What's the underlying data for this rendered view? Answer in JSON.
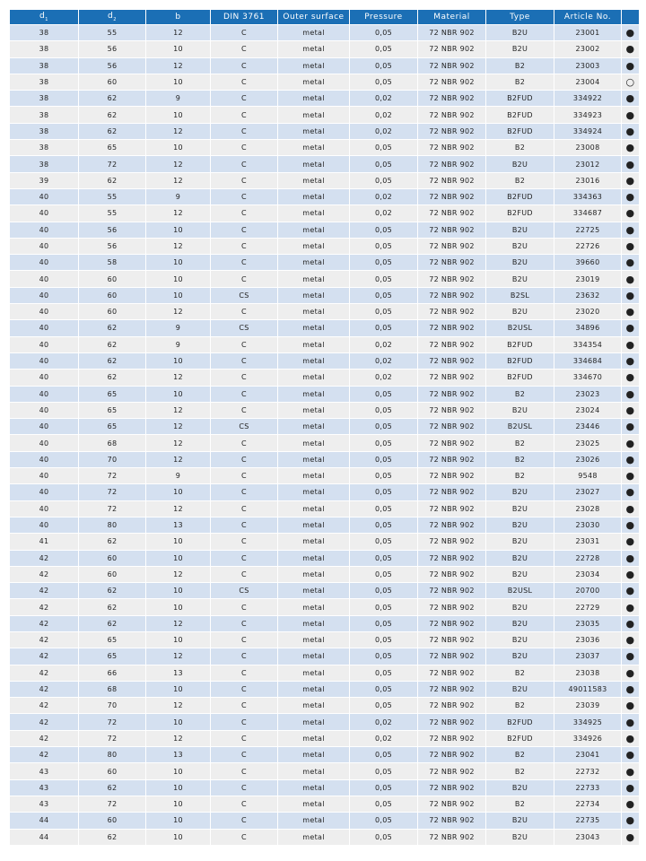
{
  "table": {
    "headers": [
      "d1",
      "d2",
      "b",
      "DIN 3761",
      "Outer surface",
      "Pressure",
      "Material",
      "Type",
      "Article No.",
      ""
    ],
    "header_sub": {
      "d1": "1",
      "d2": "2"
    },
    "availability_legend": {
      "filled": "●",
      "empty": "○"
    },
    "colors": {
      "header": "#1b6fb5",
      "row_odd": "#d4e0f0",
      "row_even": "#eeeeee"
    },
    "rows": [
      [
        "38",
        "55",
        "12",
        "C",
        "metal",
        "0,05",
        "72 NBR 902",
        "B2U",
        "23001",
        "●"
      ],
      [
        "38",
        "56",
        "10",
        "C",
        "metal",
        "0,05",
        "72 NBR 902",
        "B2U",
        "23002",
        "●"
      ],
      [
        "38",
        "56",
        "12",
        "C",
        "metal",
        "0,05",
        "72 NBR 902",
        "B2",
        "23003",
        "●"
      ],
      [
        "38",
        "60",
        "10",
        "C",
        "metal",
        "0,05",
        "72 NBR 902",
        "B2",
        "23004",
        "○"
      ],
      [
        "38",
        "62",
        "9",
        "C",
        "metal",
        "0,02",
        "72 NBR 902",
        "B2FUD",
        "334922",
        "●"
      ],
      [
        "38",
        "62",
        "10",
        "C",
        "metal",
        "0,02",
        "72 NBR 902",
        "B2FUD",
        "334923",
        "●"
      ],
      [
        "38",
        "62",
        "12",
        "C",
        "metal",
        "0,02",
        "72 NBR 902",
        "B2FUD",
        "334924",
        "●"
      ],
      [
        "38",
        "65",
        "10",
        "C",
        "metal",
        "0,05",
        "72 NBR 902",
        "B2",
        "23008",
        "●"
      ],
      [
        "38",
        "72",
        "12",
        "C",
        "metal",
        "0,05",
        "72 NBR 902",
        "B2U",
        "23012",
        "●"
      ],
      [
        "39",
        "62",
        "12",
        "C",
        "metal",
        "0,05",
        "72 NBR 902",
        "B2",
        "23016",
        "●"
      ],
      [
        "40",
        "55",
        "9",
        "C",
        "metal",
        "0,02",
        "72 NBR 902",
        "B2FUD",
        "334363",
        "●"
      ],
      [
        "40",
        "55",
        "12",
        "C",
        "metal",
        "0,02",
        "72 NBR 902",
        "B2FUD",
        "334687",
        "●"
      ],
      [
        "40",
        "56",
        "10",
        "C",
        "metal",
        "0,05",
        "72 NBR 902",
        "B2U",
        "22725",
        "●"
      ],
      [
        "40",
        "56",
        "12",
        "C",
        "metal",
        "0,05",
        "72 NBR 902",
        "B2U",
        "22726",
        "●"
      ],
      [
        "40",
        "58",
        "10",
        "C",
        "metal",
        "0,05",
        "72 NBR 902",
        "B2U",
        "39660",
        "●"
      ],
      [
        "40",
        "60",
        "10",
        "C",
        "metal",
        "0,05",
        "72 NBR 902",
        "B2U",
        "23019",
        "●"
      ],
      [
        "40",
        "60",
        "10",
        "CS",
        "metal",
        "0,05",
        "72 NBR 902",
        "B2SL",
        "23632",
        "●"
      ],
      [
        "40",
        "60",
        "12",
        "C",
        "metal",
        "0,05",
        "72 NBR 902",
        "B2U",
        "23020",
        "●"
      ],
      [
        "40",
        "62",
        "9",
        "CS",
        "metal",
        "0,05",
        "72 NBR 902",
        "B2USL",
        "34896",
        "●"
      ],
      [
        "40",
        "62",
        "9",
        "C",
        "metal",
        "0,02",
        "72 NBR 902",
        "B2FUD",
        "334354",
        "●"
      ],
      [
        "40",
        "62",
        "10",
        "C",
        "metal",
        "0,02",
        "72 NBR 902",
        "B2FUD",
        "334684",
        "●"
      ],
      [
        "40",
        "62",
        "12",
        "C",
        "metal",
        "0,02",
        "72 NBR 902",
        "B2FUD",
        "334670",
        "●"
      ],
      [
        "40",
        "65",
        "10",
        "C",
        "metal",
        "0,05",
        "72 NBR 902",
        "B2",
        "23023",
        "●"
      ],
      [
        "40",
        "65",
        "12",
        "C",
        "metal",
        "0,05",
        "72 NBR 902",
        "B2U",
        "23024",
        "●"
      ],
      [
        "40",
        "65",
        "12",
        "CS",
        "metal",
        "0,05",
        "72 NBR 902",
        "B2USL",
        "23446",
        "●"
      ],
      [
        "40",
        "68",
        "12",
        "C",
        "metal",
        "0,05",
        "72 NBR 902",
        "B2",
        "23025",
        "●"
      ],
      [
        "40",
        "70",
        "12",
        "C",
        "metal",
        "0,05",
        "72 NBR 902",
        "B2",
        "23026",
        "●"
      ],
      [
        "40",
        "72",
        "9",
        "C",
        "metal",
        "0,05",
        "72 NBR 902",
        "B2",
        "9548",
        "●"
      ],
      [
        "40",
        "72",
        "10",
        "C",
        "metal",
        "0,05",
        "72 NBR 902",
        "B2U",
        "23027",
        "●"
      ],
      [
        "40",
        "72",
        "12",
        "C",
        "metal",
        "0,05",
        "72 NBR 902",
        "B2U",
        "23028",
        "●"
      ],
      [
        "40",
        "80",
        "13",
        "C",
        "metal",
        "0,05",
        "72 NBR 902",
        "B2U",
        "23030",
        "●"
      ],
      [
        "41",
        "62",
        "10",
        "C",
        "metal",
        "0,05",
        "72 NBR 902",
        "B2U",
        "23031",
        "●"
      ],
      [
        "42",
        "60",
        "10",
        "C",
        "metal",
        "0,05",
        "72 NBR 902",
        "B2U",
        "22728",
        "●"
      ],
      [
        "42",
        "60",
        "12",
        "C",
        "metal",
        "0,05",
        "72 NBR 902",
        "B2U",
        "23034",
        "●"
      ],
      [
        "42",
        "62",
        "10",
        "CS",
        "metal",
        "0,05",
        "72 NBR 902",
        "B2USL",
        "20700",
        "●"
      ],
      [
        "42",
        "62",
        "10",
        "C",
        "metal",
        "0,05",
        "72 NBR 902",
        "B2U",
        "22729",
        "●"
      ],
      [
        "42",
        "62",
        "12",
        "C",
        "metal",
        "0,05",
        "72 NBR 902",
        "B2U",
        "23035",
        "●"
      ],
      [
        "42",
        "65",
        "10",
        "C",
        "metal",
        "0,05",
        "72 NBR 902",
        "B2U",
        "23036",
        "●"
      ],
      [
        "42",
        "65",
        "12",
        "C",
        "metal",
        "0,05",
        "72 NBR 902",
        "B2U",
        "23037",
        "●"
      ],
      [
        "42",
        "66",
        "13",
        "C",
        "metal",
        "0,05",
        "72 NBR 902",
        "B2",
        "23038",
        "●"
      ],
      [
        "42",
        "68",
        "10",
        "C",
        "metal",
        "0,05",
        "72 NBR 902",
        "B2U",
        "49011583",
        "●"
      ],
      [
        "42",
        "70",
        "12",
        "C",
        "metal",
        "0,05",
        "72 NBR 902",
        "B2",
        "23039",
        "●"
      ],
      [
        "42",
        "72",
        "10",
        "C",
        "metal",
        "0,02",
        "72 NBR 902",
        "B2FUD",
        "334925",
        "●"
      ],
      [
        "42",
        "72",
        "12",
        "C",
        "metal",
        "0,02",
        "72 NBR 902",
        "B2FUD",
        "334926",
        "●"
      ],
      [
        "42",
        "80",
        "13",
        "C",
        "metal",
        "0,05",
        "72 NBR 902",
        "B2",
        "23041",
        "●"
      ],
      [
        "43",
        "60",
        "10",
        "C",
        "metal",
        "0,05",
        "72 NBR 902",
        "B2",
        "22732",
        "●"
      ],
      [
        "43",
        "62",
        "10",
        "C",
        "metal",
        "0,05",
        "72 NBR 902",
        "B2U",
        "22733",
        "●"
      ],
      [
        "43",
        "72",
        "10",
        "C",
        "metal",
        "0,05",
        "72 NBR 902",
        "B2",
        "22734",
        "●"
      ],
      [
        "44",
        "60",
        "10",
        "C",
        "metal",
        "0,05",
        "72 NBR 902",
        "B2U",
        "22735",
        "●"
      ],
      [
        "44",
        "62",
        "10",
        "C",
        "metal",
        "0,05",
        "72 NBR 902",
        "B2U",
        "23043",
        "●"
      ]
    ]
  }
}
